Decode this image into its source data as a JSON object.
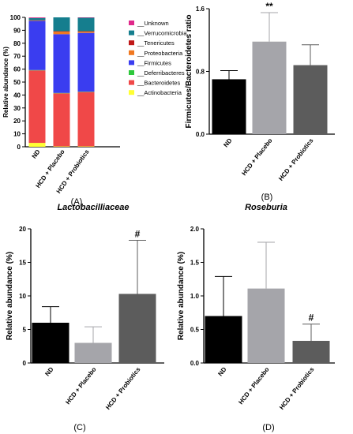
{
  "chart_data": [
    {
      "panel_label": "(A)",
      "type": "bar",
      "stacked": true,
      "ylabel": "Relative abundance (%)",
      "ylim": [
        0,
        100
      ],
      "yticks": [
        0,
        10,
        20,
        30,
        40,
        50,
        60,
        70,
        80,
        90,
        100
      ],
      "categories": [
        "ND",
        "HCD + Placebo",
        "HCD + Probiotics"
      ],
      "legend_position": "right",
      "series": [
        {
          "name": "__Actinobacteria",
          "color": "#ffff33",
          "values": [
            3,
            0.3,
            0.3
          ]
        },
        {
          "name": "__Bacteroidetes",
          "color": "#f04848",
          "values": [
            56,
            41,
            42
          ]
        },
        {
          "name": "__Deferribacteres",
          "color": "#2ec83c",
          "values": [
            0.3,
            0.3,
            0.3
          ]
        },
        {
          "name": "__Firmicutes",
          "color": "#3a3df0",
          "values": [
            38,
            45.4,
            45.4
          ]
        },
        {
          "name": "__Proteobacteria",
          "color": "#f07820",
          "values": [
            0.3,
            2,
            1
          ]
        },
        {
          "name": "__Tenericutes",
          "color": "#c01818",
          "values": [
            0.2,
            0.3,
            0.3
          ]
        },
        {
          "name": "__Verrucomicrobia",
          "color": "#157e8e",
          "values": [
            1.7,
            10.7,
            10.4
          ]
        },
        {
          "name": "__Unknown",
          "color": "#e0288a",
          "values": [
            0.5,
            0,
            0.3
          ]
        }
      ]
    },
    {
      "panel_label": "(B)",
      "type": "bar",
      "ylabel": "Firmicutes/Bacteroidetes ratio",
      "ylim": [
        0,
        1.6
      ],
      "yticks": [
        "0.0",
        "0.8",
        "1.6"
      ],
      "categories": [
        "ND",
        "HCD + Placebo",
        "HCD + Probiotics"
      ],
      "values": [
        0.7,
        1.18,
        0.88
      ],
      "errors": [
        0.11,
        0.37,
        0.26
      ],
      "colors": [
        "#000000",
        "#a5a5aa",
        "#5c5c5c"
      ],
      "annotations": [
        "",
        "**",
        ""
      ]
    },
    {
      "panel_label": "(C)",
      "type": "bar",
      "title": "Lactobacilliaceae",
      "ylabel": "Relative abundance (%)",
      "ylim": [
        0,
        20
      ],
      "yticks": [
        "0",
        "5",
        "10",
        "15",
        "20"
      ],
      "categories": [
        "ND",
        "HCD + Placebo",
        "HCD + Probiotics"
      ],
      "values": [
        6.0,
        3.0,
        10.3
      ],
      "errors": [
        2.4,
        2.4,
        8.0
      ],
      "colors": [
        "#000000",
        "#a5a5aa",
        "#5c5c5c"
      ],
      "annotations": [
        "",
        "",
        "#"
      ]
    },
    {
      "panel_label": "(D)",
      "type": "bar",
      "title": "Roseburia",
      "ylabel": "Relative abundance (%)",
      "ylim": [
        0,
        2.0
      ],
      "yticks": [
        "0.0",
        "0.5",
        "1.0",
        "1.5",
        "2.0"
      ],
      "categories": [
        "ND",
        "HCD + Placebo",
        "HCD + Probiotics"
      ],
      "values": [
        0.7,
        1.11,
        0.33
      ],
      "errors": [
        0.59,
        0.69,
        0.25
      ],
      "colors": [
        "#000000",
        "#a5a5aa",
        "#5c5c5c"
      ],
      "annotations": [
        "",
        "",
        "#"
      ]
    }
  ]
}
